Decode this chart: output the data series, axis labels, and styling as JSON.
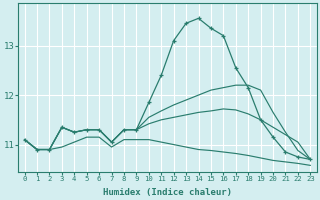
{
  "xlabel": "Humidex (Indice chaleur)",
  "x": [
    0,
    1,
    2,
    3,
    4,
    5,
    6,
    7,
    8,
    9,
    10,
    11,
    12,
    13,
    14,
    15,
    16,
    17,
    18,
    19,
    20,
    21,
    22,
    23
  ],
  "line1": [
    11.1,
    10.9,
    10.9,
    11.35,
    11.25,
    11.3,
    11.3,
    11.05,
    11.3,
    11.3,
    11.85,
    12.4,
    13.1,
    13.45,
    13.55,
    13.35,
    13.2,
    12.55,
    12.15,
    11.5,
    11.15,
    10.85,
    10.75,
    10.7
  ],
  "line2": [
    11.1,
    10.9,
    10.9,
    11.35,
    11.25,
    11.3,
    11.3,
    11.05,
    11.3,
    11.3,
    11.55,
    11.68,
    11.8,
    11.9,
    12.0,
    12.1,
    12.15,
    12.2,
    12.2,
    12.1,
    11.65,
    11.25,
    10.88,
    10.7
  ],
  "line3": [
    11.1,
    10.9,
    10.9,
    11.35,
    11.25,
    11.3,
    11.3,
    11.05,
    11.3,
    11.3,
    11.42,
    11.5,
    11.55,
    11.6,
    11.65,
    11.68,
    11.72,
    11.7,
    11.62,
    11.5,
    11.35,
    11.2,
    11.05,
    10.7
  ],
  "line4": [
    11.1,
    10.9,
    10.9,
    10.95,
    11.05,
    11.15,
    11.15,
    10.95,
    11.1,
    11.1,
    11.1,
    11.05,
    11.0,
    10.95,
    10.9,
    10.88,
    10.85,
    10.82,
    10.78,
    10.73,
    10.68,
    10.65,
    10.62,
    10.58
  ],
  "line_color": "#2a7d6e",
  "bg_color": "#d4eef0",
  "grid_color": "#ffffff",
  "tick_color": "#2a7d6e",
  "yticks": [
    11,
    12,
    13
  ],
  "ylim": [
    10.45,
    13.85
  ],
  "xlim": [
    -0.5,
    23.5
  ]
}
